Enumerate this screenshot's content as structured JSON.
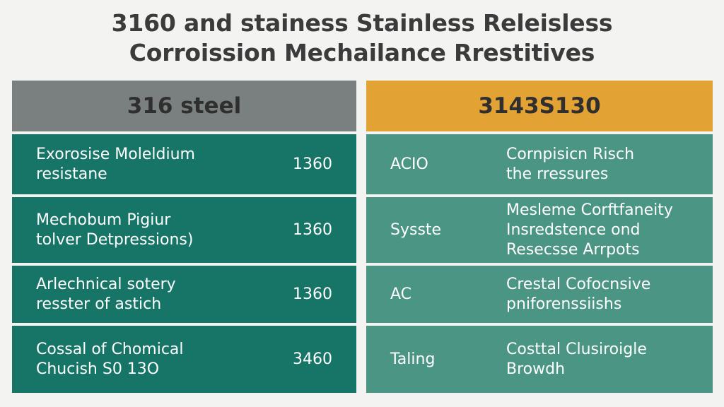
{
  "title": {
    "line1": "3160 and stainess Stainless Releisless",
    "line2": "Corroission Mechailance Rrestitives"
  },
  "left_panel": {
    "header": "316 steel",
    "rows": [
      {
        "label_line1": "Exorosise Moleldium",
        "label_line2": "resistane",
        "value": "1360"
      },
      {
        "label_line1": "Mechobum Pigiur",
        "label_line2": "tolver Detpressions)",
        "value": "1360"
      },
      {
        "label_line1": "Arlechnical sotery",
        "label_line2": "resster of astich",
        "value": "1360"
      },
      {
        "label_line1": "Cossal of Chomical",
        "label_line2": "Chucish S0 13O",
        "value": "3460"
      }
    ]
  },
  "right_panel": {
    "header": "3143S130",
    "rows": [
      {
        "key": "ACIO",
        "desc_line1": "Cornpisicn Risch",
        "desc_line2": "the rressures",
        "desc_line3": ""
      },
      {
        "key": "Sysste",
        "desc_line1": "Mesleme Corftfaneity",
        "desc_line2": "Insredstence ond",
        "desc_line3": "Resecsse Arrpots"
      },
      {
        "key": "AC",
        "desc_line1": "Crestal Cofocnsive",
        "desc_line2": "pniforenssiishs",
        "desc_line3": ""
      },
      {
        "key": "Taling",
        "desc_line1": "Costtal Clusiroigle",
        "desc_line2": "Browdh",
        "desc_line3": ""
      }
    ]
  },
  "colors": {
    "left_header": "#7a807f",
    "right_header": "#e3a234",
    "left_row": "#167566",
    "right_row": "#4b9584"
  }
}
